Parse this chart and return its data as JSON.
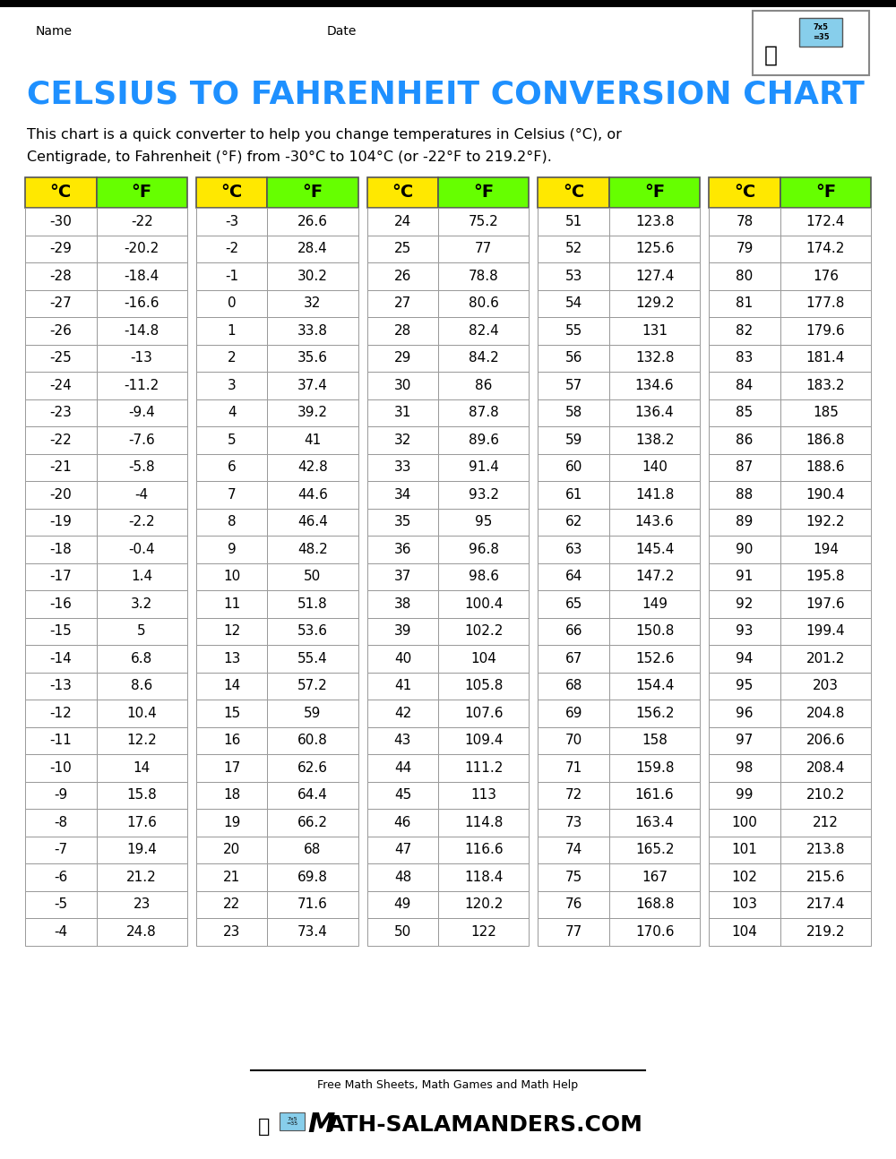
{
  "title": "CELSIUS TO FAHRENHEIT CONVERSION CHART",
  "title_color": "#1E90FF",
  "description_line1": "This chart is a quick converter to help you change temperatures in Celsius (°C), or",
  "description_line2": "Centigrade, to Fahrenheit (°F) from -30°C to 104°C (or -22°F to 219.2°F).",
  "header_c": "°C",
  "header_f": "°F",
  "header_bg_yellow": "#FFE800",
  "header_bg_green": "#66FF00",
  "cell_border_color": "#999999",
  "cell_bg_color": "#FFFFFF",
  "name_label": "Name",
  "date_label": "Date",
  "footer_text1": "Free Math Sheets, Math Games and Math Help",
  "footer_text2": "ATH-SALAMANDERS.COM",
  "columns": [
    {
      "celsius": [
        -30,
        -29,
        -28,
        -27,
        -26,
        -25,
        -24,
        -23,
        -22,
        -21,
        -20,
        -19,
        -18,
        -17,
        -16,
        -15,
        -14,
        -13,
        -12,
        -11,
        -10,
        -9,
        -8,
        -7,
        -6,
        -5,
        -4
      ],
      "fahrenheit": [
        "-22",
        "-20.2",
        "-18.4",
        "-16.6",
        "-14.8",
        "-13",
        "-11.2",
        "-9.4",
        "-7.6",
        "-5.8",
        "-4",
        "-2.2",
        "-0.4",
        "1.4",
        "3.2",
        "5",
        "6.8",
        "8.6",
        "10.4",
        "12.2",
        "14",
        "15.8",
        "17.6",
        "19.4",
        "21.2",
        "23",
        "24.8"
      ]
    },
    {
      "celsius": [
        -3,
        -2,
        -1,
        0,
        1,
        2,
        3,
        4,
        5,
        6,
        7,
        8,
        9,
        10,
        11,
        12,
        13,
        14,
        15,
        16,
        17,
        18,
        19,
        20,
        21,
        22,
        23
      ],
      "fahrenheit": [
        "26.6",
        "28.4",
        "30.2",
        "32",
        "33.8",
        "35.6",
        "37.4",
        "39.2",
        "41",
        "42.8",
        "44.6",
        "46.4",
        "48.2",
        "50",
        "51.8",
        "53.6",
        "55.4",
        "57.2",
        "59",
        "60.8",
        "62.6",
        "64.4",
        "66.2",
        "68",
        "69.8",
        "71.6",
        "73.4"
      ]
    },
    {
      "celsius": [
        24,
        25,
        26,
        27,
        28,
        29,
        30,
        31,
        32,
        33,
        34,
        35,
        36,
        37,
        38,
        39,
        40,
        41,
        42,
        43,
        44,
        45,
        46,
        47,
        48,
        49,
        50
      ],
      "fahrenheit": [
        "75.2",
        "77",
        "78.8",
        "80.6",
        "82.4",
        "84.2",
        "86",
        "87.8",
        "89.6",
        "91.4",
        "93.2",
        "95",
        "96.8",
        "98.6",
        "100.4",
        "102.2",
        "104",
        "105.8",
        "107.6",
        "109.4",
        "111.2",
        "113",
        "114.8",
        "116.6",
        "118.4",
        "120.2",
        "122"
      ]
    },
    {
      "celsius": [
        51,
        52,
        53,
        54,
        55,
        56,
        57,
        58,
        59,
        60,
        61,
        62,
        63,
        64,
        65,
        66,
        67,
        68,
        69,
        70,
        71,
        72,
        73,
        74,
        75,
        76,
        77
      ],
      "fahrenheit": [
        "123.8",
        "125.6",
        "127.4",
        "129.2",
        "131",
        "132.8",
        "134.6",
        "136.4",
        "138.2",
        "140",
        "141.8",
        "143.6",
        "145.4",
        "147.2",
        "149",
        "150.8",
        "152.6",
        "154.4",
        "156.2",
        "158",
        "159.8",
        "161.6",
        "163.4",
        "165.2",
        "167",
        "168.8",
        "170.6"
      ]
    },
    {
      "celsius": [
        78,
        79,
        80,
        81,
        82,
        83,
        84,
        85,
        86,
        87,
        88,
        89,
        90,
        91,
        92,
        93,
        94,
        95,
        96,
        97,
        98,
        99,
        100,
        101,
        102,
        103,
        104
      ],
      "fahrenheit": [
        "172.4",
        "174.2",
        "176",
        "177.8",
        "179.6",
        "181.4",
        "183.2",
        "185",
        "186.8",
        "188.6",
        "190.4",
        "192.2",
        "194",
        "195.8",
        "197.6",
        "199.4",
        "201.2",
        "203",
        "204.8",
        "206.6",
        "208.4",
        "210.2",
        "212",
        "213.8",
        "215.6",
        "217.4",
        "219.2"
      ]
    }
  ]
}
